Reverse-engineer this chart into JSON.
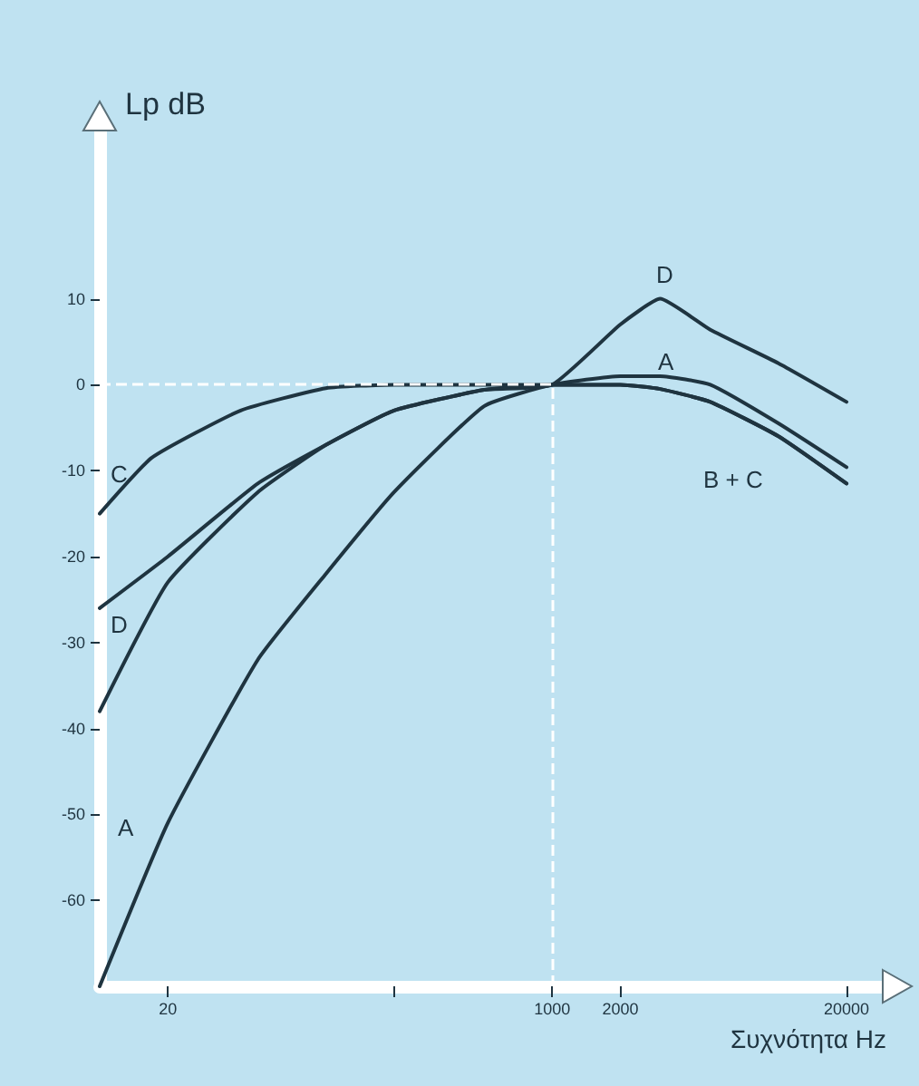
{
  "chart_data": {
    "type": "line",
    "xlabel": "Συχνότητα Hz",
    "ylabel": "Lp dB",
    "log": "x",
    "xlim": [
      10,
      30000
    ],
    "ylim": [
      -70,
      30
    ],
    "xticks": [
      20,
      {
        "value": 200,
        "label": null
      },
      1000,
      2000,
      20000
    ],
    "yticks": [
      10,
      0,
      -10,
      -20,
      -30,
      -40,
      -50,
      -60
    ],
    "grid": false,
    "marker": "none",
    "line_style": "solid",
    "series": [
      {
        "color": "#1f3440",
        "x": [
          10,
          20,
          50,
          100,
          200,
          500,
          1000,
          2000,
          3000,
          5000,
          10000,
          20000
        ],
        "values": [
          -70,
          -51,
          -32,
          -22,
          -12.5,
          -2.5,
          0,
          1,
          1,
          0,
          -4.5,
          -9.6
        ]
      },
      {
        "color": "#1f3440",
        "x": [
          10,
          20,
          50,
          100,
          200,
          500,
          1000,
          2000,
          3000,
          5000,
          10000,
          20000
        ],
        "values": [
          -26,
          -20,
          -11.5,
          -7,
          -3,
          -0.6,
          0,
          0,
          -0.5,
          -2,
          -6,
          -11.5
        ]
      },
      {
        "color": "#1f3440",
        "x": [
          10,
          17,
          42,
          100,
          200,
          500,
          1000,
          2000,
          3000,
          5000,
          10000,
          20000
        ],
        "values": [
          -15,
          -8.5,
          -3,
          -0.4,
          0,
          0,
          0,
          0,
          -0.5,
          -2,
          -6,
          -11.5
        ]
      },
      {
        "color": "#1f3440",
        "x": [
          10,
          20,
          50,
          100,
          200,
          500,
          1000,
          2000,
          3000,
          5000,
          10000,
          20000
        ],
        "values": [
          -38,
          -23,
          -12.5,
          -7,
          -3,
          -0.6,
          0,
          7,
          10,
          6.4,
          2.5,
          -2
        ]
      }
    ],
    "ref_lines": [
      {
        "axis": "y",
        "value": 0,
        "color": "#ffffff",
        "line_style": "dashed"
      },
      {
        "axis": "x",
        "value": 1000,
        "color": "#ffffff",
        "line_style": "dashed"
      }
    ],
    "annotations": [
      "D",
      "A",
      "B + C",
      "C",
      "D",
      "A"
    ]
  }
}
